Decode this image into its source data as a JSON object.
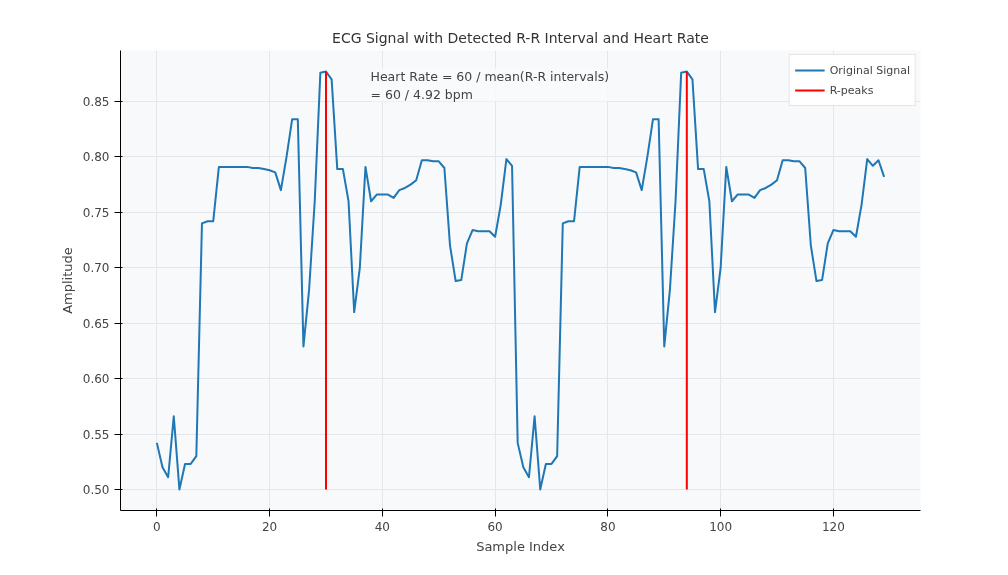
{
  "chart_data": {
    "type": "line",
    "title": "ECG Signal with Detected R-R Interval and Heart Rate",
    "xlabel": "Sample Index",
    "ylabel": "Amplitude",
    "series": [
      {
        "name": "Original Signal",
        "color": "#1f77b4",
        "x": [
          0,
          1,
          2,
          3,
          4,
          5,
          6,
          7,
          8,
          9,
          10,
          11,
          12,
          13,
          14,
          15,
          16,
          17,
          18,
          19,
          20,
          21,
          22,
          23,
          24,
          25,
          26,
          27,
          28,
          29,
          30,
          31,
          32,
          33,
          34,
          35,
          36,
          37,
          38,
          39,
          40,
          41,
          42,
          43,
          44,
          45,
          46,
          47,
          48,
          49,
          50,
          51,
          52,
          53,
          54,
          55,
          56,
          57,
          58,
          59,
          60,
          61,
          62,
          63,
          64,
          65,
          66,
          67,
          68,
          69,
          70,
          71,
          72,
          73,
          74,
          75,
          76,
          77,
          78,
          79,
          80,
          81,
          82,
          83,
          84,
          85,
          86,
          87,
          88,
          89,
          90,
          91,
          92,
          93,
          94,
          95,
          96,
          97,
          98,
          99,
          100,
          101,
          102,
          103,
          104,
          105,
          106,
          107,
          108,
          109,
          110,
          111,
          112,
          113,
          114,
          115,
          116,
          117,
          118,
          119,
          120,
          121,
          122,
          123,
          124,
          125,
          126,
          127,
          128,
          129
        ],
        "values": [
          0.542,
          0.52,
          0.511,
          0.566,
          0.5,
          0.523,
          0.523,
          0.53,
          0.74,
          0.742,
          0.742,
          0.791,
          0.791,
          0.791,
          0.791,
          0.791,
          0.791,
          0.79,
          0.79,
          0.789,
          0.788,
          0.786,
          0.77,
          0.8,
          0.834,
          0.834,
          0.629,
          0.68,
          0.76,
          0.876,
          0.877,
          0.87,
          0.789,
          0.789,
          0.76,
          0.66,
          0.7,
          0.791,
          0.76,
          0.766,
          0.766,
          0.766,
          0.763,
          0.77,
          0.772,
          0.775,
          0.779,
          0.797,
          0.797,
          0.796,
          0.796,
          0.79,
          0.72,
          0.688,
          0.689,
          0.722,
          0.734,
          0.733,
          0.733,
          0.733,
          0.728,
          0.757,
          0.798,
          0.792,
          0.542,
          0.52,
          0.511,
          0.566,
          0.5,
          0.523,
          0.523,
          0.53,
          0.74,
          0.742,
          0.742,
          0.791,
          0.791,
          0.791,
          0.791,
          0.791,
          0.791,
          0.79,
          0.79,
          0.789,
          0.788,
          0.786,
          0.77,
          0.8,
          0.834,
          0.834,
          0.629,
          0.68,
          0.76,
          0.876,
          0.877,
          0.87,
          0.789,
          0.789,
          0.76,
          0.66,
          0.7,
          0.791,
          0.76,
          0.766,
          0.766,
          0.766,
          0.763,
          0.77,
          0.772,
          0.775,
          0.779,
          0.797,
          0.797,
          0.796,
          0.796,
          0.79,
          0.72,
          0.688,
          0.689,
          0.722,
          0.734,
          0.733,
          0.733,
          0.733,
          0.728,
          0.757,
          0.798,
          0.792,
          0.797,
          0.782
        ]
      },
      {
        "name": "R-peaks",
        "color": "#ff0000",
        "x": [
          30,
          30
        ],
        "values": [
          0.5,
          0.877
        ]
      },
      {
        "color": "#ff0000",
        "x": [
          94,
          94
        ],
        "values": [
          0.5,
          0.877
        ]
      }
    ],
    "annotations": [
      "Heart Rate = 60 / mean(R-R intervals)\n= 60 / 4.92 bpm"
    ],
    "xlim": [
      -6.45,
      135.45
    ],
    "ylim": [
      0.481,
      0.896
    ],
    "xticks": [
      0,
      20,
      40,
      60,
      80,
      100,
      120
    ],
    "yticks": [
      {
        "value": 0.5,
        "label": "0.50"
      },
      0.55,
      {
        "value": 0.6,
        "label": "0.60"
      },
      0.65,
      {
        "value": 0.7,
        "label": "0.70"
      },
      0.75,
      {
        "value": 0.8,
        "label": "0.80"
      },
      0.85
    ],
    "grid": true,
    "legend": "top right",
    "line_style": "solid"
  }
}
